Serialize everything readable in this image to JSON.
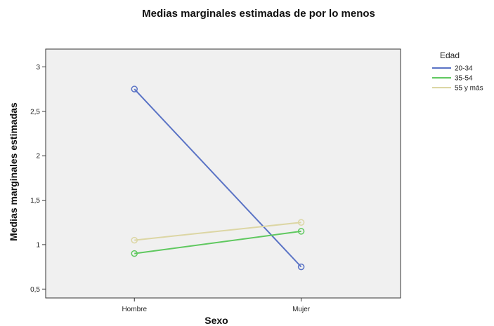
{
  "chart_data": {
    "type": "line",
    "title": "Medias marginales estimadas de por lo menos",
    "xlabel": "Sexo",
    "ylabel": "Medias marginales estimadas",
    "categories": [
      "Hombre",
      "Mujer"
    ],
    "ylim": [
      0.4,
      3.2
    ],
    "yticks": [
      {
        "value": 0.5,
        "label": "0,5"
      },
      {
        "value": 1,
        "label": "1"
      },
      {
        "value": 1.5,
        "label": "1,5"
      },
      {
        "value": 2,
        "label": "2"
      },
      {
        "value": 2.5,
        "label": "2,5"
      },
      {
        "value": 3,
        "label": "3"
      }
    ],
    "grid": false,
    "legend_title": "Edad",
    "legend_position": "top-right, outside plot",
    "series": [
      {
        "name": "20-34",
        "values": [
          2.75,
          0.75
        ],
        "color": "#5a73c5"
      },
      {
        "name": "35-54",
        "values": [
          0.9,
          1.15
        ],
        "color": "#5fc85f"
      },
      {
        "name": "55 y más",
        "values": [
          1.05,
          1.25
        ],
        "color": "#dcd6a4"
      }
    ],
    "plot_background": "#f0f0f0"
  }
}
